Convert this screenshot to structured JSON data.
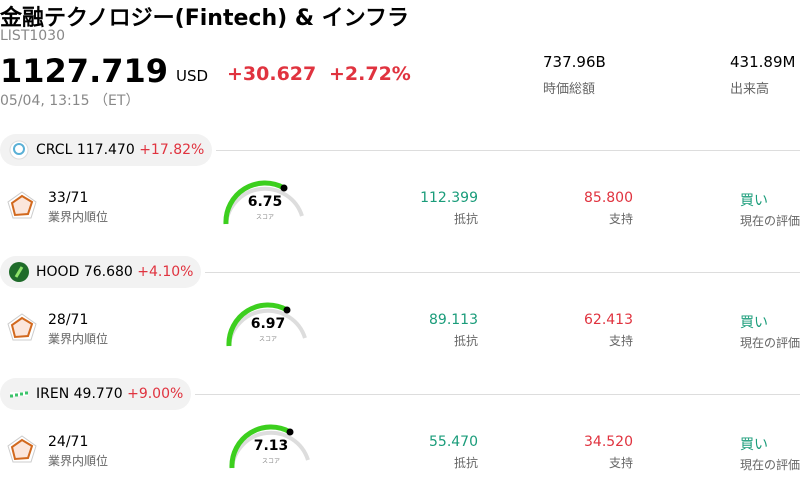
{
  "header": {
    "title": "金融テクノロジー(Fintech) & インフラ",
    "code": "LIST1030",
    "price": "1127.719",
    "currency": "USD",
    "change": "+30.627",
    "change_pct": "+2.72%",
    "time": "05/04, 13:15 （ET）",
    "stats": [
      {
        "value": "737.96B",
        "label": "時価総額"
      },
      {
        "value": "431.89M",
        "label": "出来高"
      }
    ]
  },
  "stocks": [
    {
      "ticker": "CRCL",
      "price": "117.470",
      "change": "+17.82%",
      "rank": "33/71",
      "rank_label": "業界内順位",
      "score": "6.75",
      "score_label": "スコア",
      "resistance": "112.399",
      "resistance_label": "抵抗",
      "support": "85.800",
      "support_label": "支持",
      "rating": "買い",
      "rating_label": "現在の評価"
    },
    {
      "ticker": "HOOD",
      "price": "76.680",
      "change": "+4.10%",
      "rank": "28/71",
      "rank_label": "業界内順位",
      "score": "6.97",
      "score_label": "スコア",
      "resistance": "89.113",
      "resistance_label": "抵抗",
      "support": "62.413",
      "support_label": "支持",
      "rating": "買い",
      "rating_label": "現在の評価"
    },
    {
      "ticker": "IREN",
      "price": "49.770",
      "change": "+9.00%",
      "rank": "24/71",
      "rank_label": "業界内順位",
      "score": "7.13",
      "score_label": "スコア",
      "resistance": "55.470",
      "resistance_label": "抵抗",
      "support": "34.520",
      "support_label": "支持",
      "rating": "買い",
      "rating_label": "現在の評価"
    }
  ]
}
